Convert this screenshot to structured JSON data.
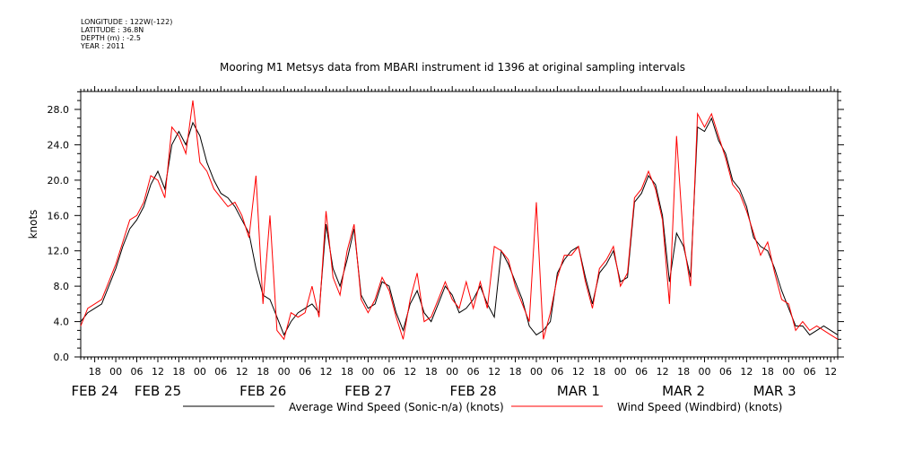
{
  "header": {
    "longitude": "LONGITUDE : 122W(-122)",
    "latitude": "LATITUDE : 36.8N",
    "depth": "DEPTH (m) : -2.5",
    "year": "YEAR : 2011"
  },
  "chart_data": {
    "type": "line",
    "title": "Mooring M1 Metsys data from MBARI instrument id 1396 at original sampling intervals",
    "xlabel": "",
    "ylabel": "knots",
    "ylim": [
      0,
      30
    ],
    "y_ticks": [
      "0.0",
      "4.0",
      "8.0",
      "12.0",
      "16.0",
      "20.0",
      "24.0",
      "28.0"
    ],
    "x_unit": "hours since FEB 24 00:00",
    "xlim": [
      14,
      230
    ],
    "x_tick_hours": [
      18,
      24,
      30,
      36,
      42,
      48,
      54,
      60,
      66,
      72,
      78,
      84,
      90,
      96,
      102,
      108,
      114,
      120,
      126,
      132,
      138,
      144,
      150,
      156,
      162,
      168,
      174,
      180,
      186,
      192,
      198,
      204,
      210,
      216,
      222,
      228
    ],
    "x_tick_labels": [
      "18",
      "00",
      "06",
      "12",
      "18",
      "00",
      "06",
      "12",
      "18",
      "00",
      "06",
      "12",
      "18",
      "00",
      "06",
      "12",
      "18",
      "00",
      "06",
      "12",
      "18",
      "00",
      "06",
      "12",
      "18",
      "00",
      "06",
      "12",
      "18",
      "00",
      "06",
      "12",
      "18",
      "00",
      "06",
      "12"
    ],
    "day_labels": [
      {
        "text": "FEB 24",
        "hour": 18
      },
      {
        "text": "FEB 25",
        "hour": 36
      },
      {
        "text": "FEB 26",
        "hour": 66
      },
      {
        "text": "FEB 27",
        "hour": 96
      },
      {
        "text": "FEB 28",
        "hour": 126
      },
      {
        "text": "MAR  1",
        "hour": 156
      },
      {
        "text": "MAR  2",
        "hour": 186
      },
      {
        "text": "MAR  3",
        "hour": 212
      }
    ],
    "grid": false,
    "legend_position": "bottom",
    "series": [
      {
        "name": "Average Wind Speed (Sonic-n/a) (knots)",
        "color": "#000000",
        "x": [
          14,
          16,
          18,
          20,
          22,
          24,
          26,
          28,
          30,
          32,
          34,
          36,
          38,
          40,
          42,
          44,
          46,
          48,
          50,
          52,
          54,
          56,
          58,
          60,
          62,
          64,
          66,
          68,
          70,
          72,
          74,
          76,
          78,
          80,
          82,
          84,
          86,
          88,
          90,
          92,
          94,
          96,
          98,
          100,
          102,
          104,
          106,
          108,
          110,
          112,
          114,
          116,
          118,
          120,
          122,
          124,
          126,
          128,
          130,
          132,
          134,
          136,
          138,
          140,
          142,
          144,
          146,
          148,
          150,
          152,
          154,
          156,
          158,
          160,
          162,
          164,
          166,
          168,
          170,
          172,
          174,
          176,
          178,
          180,
          182,
          184,
          186,
          188,
          190,
          192,
          194,
          196,
          198,
          200,
          202,
          204,
          206,
          208,
          210,
          212,
          214,
          216,
          218,
          220,
          222,
          224,
          226,
          228,
          230
        ],
        "y": [
          4.0,
          5.0,
          5.5,
          6.0,
          8.0,
          10.0,
          12.5,
          14.5,
          15.5,
          17.0,
          19.5,
          21.0,
          19.0,
          24.0,
          25.5,
          24.0,
          26.5,
          25.0,
          22.0,
          20.0,
          18.5,
          18.0,
          17.0,
          15.5,
          14.0,
          10.0,
          7.0,
          6.5,
          4.5,
          2.5,
          4.0,
          5.0,
          5.5,
          6.0,
          5.0,
          15.0,
          10.0,
          8.0,
          11.0,
          14.5,
          7.0,
          5.5,
          6.0,
          8.5,
          8.0,
          5.0,
          3.0,
          6.0,
          7.5,
          5.0,
          4.0,
          6.0,
          8.0,
          7.0,
          5.0,
          5.5,
          6.5,
          8.0,
          6.0,
          4.5,
          12.0,
          10.5,
          8.5,
          6.5,
          3.5,
          2.5,
          3.0,
          4.0,
          9.5,
          11.0,
          12.0,
          12.5,
          9.0,
          6.0,
          9.5,
          10.5,
          12.0,
          8.5,
          9.0,
          17.5,
          18.5,
          20.5,
          19.5,
          16.0,
          8.5,
          14.0,
          12.5,
          9.0,
          26.0,
          25.5,
          27.0,
          24.5,
          23.0,
          20.0,
          19.0,
          17.0,
          13.5,
          12.5,
          12.0,
          10.0,
          7.5,
          5.5,
          3.5,
          3.5,
          2.5,
          3.0,
          3.5,
          3.0,
          2.5
        ]
      },
      {
        "name": "Wind Speed (Windbird) (knots)",
        "color": "#ff0000",
        "x": [
          14,
          16,
          18,
          20,
          22,
          24,
          26,
          28,
          30,
          32,
          34,
          36,
          38,
          40,
          42,
          44,
          46,
          48,
          50,
          52,
          54,
          56,
          58,
          60,
          62,
          64,
          66,
          68,
          70,
          72,
          74,
          76,
          78,
          80,
          82,
          84,
          86,
          88,
          90,
          92,
          94,
          96,
          98,
          100,
          102,
          104,
          106,
          108,
          110,
          112,
          114,
          116,
          118,
          120,
          122,
          124,
          126,
          128,
          130,
          132,
          134,
          136,
          138,
          140,
          142,
          144,
          146,
          148,
          150,
          152,
          154,
          156,
          158,
          160,
          162,
          164,
          166,
          168,
          170,
          172,
          174,
          176,
          178,
          180,
          182,
          184,
          186,
          188,
          190,
          192,
          194,
          196,
          198,
          200,
          202,
          204,
          206,
          208,
          210,
          212,
          214,
          216,
          218,
          220,
          222,
          224,
          226,
          228,
          230
        ],
        "y": [
          3.5,
          5.5,
          6.0,
          6.5,
          8.5,
          10.5,
          13.0,
          15.5,
          16.0,
          17.5,
          20.5,
          20.0,
          18.0,
          26.0,
          25.0,
          23.0,
          29.0,
          22.0,
          21.0,
          19.0,
          18.0,
          17.0,
          17.5,
          16.0,
          13.5,
          20.5,
          6.0,
          16.0,
          3.0,
          2.0,
          5.0,
          4.5,
          5.0,
          8.0,
          4.5,
          16.5,
          9.0,
          7.0,
          12.0,
          15.0,
          6.5,
          5.0,
          6.5,
          9.0,
          7.5,
          4.5,
          2.0,
          6.5,
          9.5,
          4.0,
          4.5,
          6.5,
          8.5,
          6.5,
          5.5,
          8.5,
          5.5,
          8.5,
          5.5,
          12.5,
          12.0,
          11.0,
          8.0,
          6.0,
          4.0,
          17.5,
          2.0,
          5.0,
          9.0,
          11.5,
          11.5,
          12.5,
          8.5,
          5.5,
          10.0,
          11.0,
          12.5,
          8.0,
          9.5,
          18.0,
          19.0,
          21.0,
          19.0,
          15.5,
          6.0,
          25.0,
          13.0,
          8.0,
          27.5,
          26.0,
          27.5,
          25.0,
          22.5,
          19.5,
          18.5,
          16.5,
          14.0,
          11.5,
          13.0,
          9.5,
          6.5,
          6.0,
          3.0,
          4.0,
          3.0,
          3.5,
          3.0,
          2.5,
          2.0
        ]
      }
    ]
  }
}
